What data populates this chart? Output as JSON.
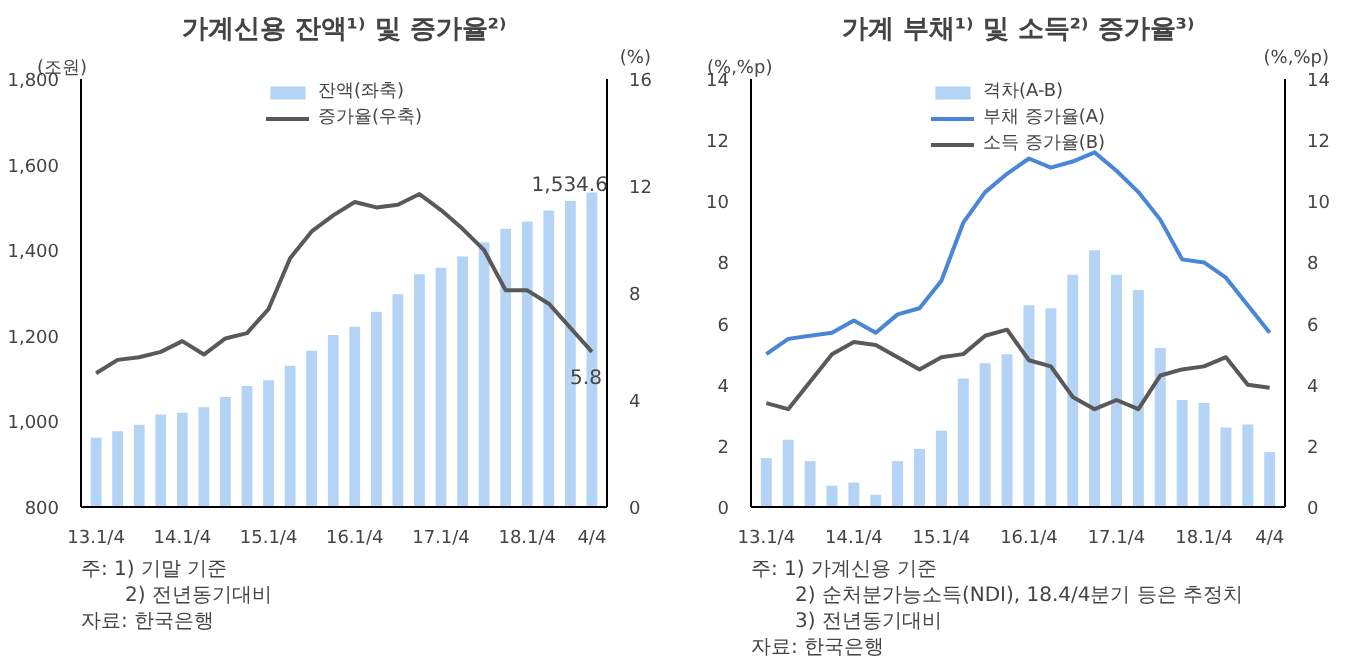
{
  "chart_data": [
    {
      "type": "bar",
      "title": "가계신용 잔액¹⁾ 및 증가율²⁾",
      "ylabel": "(조원)",
      "y2label": "(%)",
      "categories": [
        "13.1/4",
        null,
        null,
        null,
        "14.1/4",
        null,
        null,
        null,
        "15.1/4",
        null,
        null,
        null,
        "16.1/4",
        null,
        null,
        null,
        "17.1/4",
        null,
        null,
        null,
        "18.1/4",
        null,
        null,
        "4/4"
      ],
      "series": [
        {
          "name": "잔액(좌축)",
          "color": "#b4d3f5",
          "values": [
            962,
            977,
            992,
            1016,
            1020,
            1033,
            1057,
            1083,
            1096,
            1130,
            1165,
            1202,
            1221,
            1256,
            1297,
            1344,
            1359,
            1385,
            1418,
            1450,
            1467,
            1493,
            1515,
            1534.6
          ],
          "value_labels": [
            null,
            null,
            null,
            null,
            null,
            null,
            null,
            null,
            null,
            null,
            null,
            null,
            null,
            null,
            null,
            null,
            null,
            null,
            null,
            null,
            null,
            null,
            null,
            "1,534.6"
          ]
        },
        {
          "name": "증가율(우축)",
          "type": "line",
          "axis": "y2",
          "color": "#595959",
          "values": [
            5.0,
            5.5,
            5.6,
            5.8,
            6.2,
            5.7,
            6.3,
            6.5,
            7.4,
            9.3,
            10.3,
            10.9,
            11.4,
            11.2,
            11.3,
            11.7,
            11.1,
            10.4,
            9.6,
            8.1,
            8.1,
            7.6,
            6.7,
            5.8
          ],
          "value_labels": [
            null,
            null,
            null,
            null,
            null,
            null,
            null,
            null,
            null,
            null,
            null,
            null,
            null,
            null,
            null,
            null,
            null,
            null,
            null,
            null,
            null,
            null,
            null,
            "5.8"
          ]
        }
      ],
      "ylim": [
        800,
        1800
      ],
      "yticks": [
        {
          "value": 800,
          "label": "800"
        },
        {
          "value": 1000,
          "label": "1,000"
        },
        {
          "value": 1200,
          "label": "1,200"
        },
        {
          "value": 1400,
          "label": "1,400"
        },
        {
          "value": 1600,
          "label": "1,600"
        },
        {
          "value": 1800,
          "label": "1,800"
        }
      ],
      "y2lim": [
        0,
        16
      ],
      "y2ticks": [
        0,
        4,
        8,
        12,
        16
      ],
      "annotations": [
        "주: 1) 기말 기준",
        "2) 전년동기대비",
        "자료: 한국은행"
      ],
      "grid": false,
      "legend": "top",
      "marker": "none",
      "line_style": "solid"
    },
    {
      "type": "bar",
      "title": "가계 부채¹⁾ 및 소득²⁾ 증가율³⁾",
      "ylabel": "(%,%p)",
      "y2label": "(%,%p)",
      "categories": [
        "13.1/4",
        null,
        null,
        null,
        "14.1/4",
        null,
        null,
        null,
        "15.1/4",
        null,
        null,
        null,
        "16.1/4",
        null,
        null,
        null,
        "17.1/4",
        null,
        null,
        null,
        "18.1/4",
        null,
        null,
        "4/4"
      ],
      "series": [
        {
          "name": "격차(A-B)",
          "color": "#b4d3f5",
          "values": [
            1.6,
            2.2,
            1.5,
            0.7,
            0.8,
            0.4,
            1.5,
            1.9,
            2.5,
            4.2,
            4.7,
            5.0,
            6.6,
            6.5,
            7.6,
            8.4,
            7.6,
            7.1,
            5.2,
            3.5,
            3.4,
            2.6,
            2.7,
            1.8
          ]
        },
        {
          "name": "부채 증가율(A)",
          "type": "line",
          "color": "#4a86d8",
          "values": [
            5.0,
            5.5,
            5.6,
            5.7,
            6.1,
            5.7,
            6.3,
            6.5,
            7.4,
            9.3,
            10.3,
            10.9,
            11.4,
            11.1,
            11.3,
            11.6,
            11.0,
            10.3,
            9.4,
            8.1,
            8.0,
            7.5,
            6.6,
            5.7
          ]
        },
        {
          "name": "소득 증가율(B)",
          "type": "line",
          "color": "#595959",
          "values": [
            3.4,
            3.2,
            4.1,
            5.0,
            5.4,
            5.3,
            4.9,
            4.5,
            4.9,
            5.0,
            5.6,
            5.8,
            4.8,
            4.6,
            3.6,
            3.2,
            3.5,
            3.2,
            4.3,
            4.5,
            4.6,
            4.9,
            4.0,
            3.9
          ]
        }
      ],
      "ylim": [
        0,
        14
      ],
      "yticks": [
        0,
        2,
        4,
        6,
        8,
        10,
        12,
        14
      ],
      "y2lim": [
        0,
        14
      ],
      "y2ticks": [
        0,
        2,
        4,
        6,
        8,
        10,
        12,
        14
      ],
      "annotations": [
        "주: 1) 가계신용 기준",
        "2) 순처분가능소득(NDI), 18.4/4분기 등은 추정치",
        "3) 전년동기대비",
        "자료: 한국은행"
      ],
      "grid": false,
      "legend": "top",
      "marker": "none",
      "line_style": "solid"
    }
  ]
}
